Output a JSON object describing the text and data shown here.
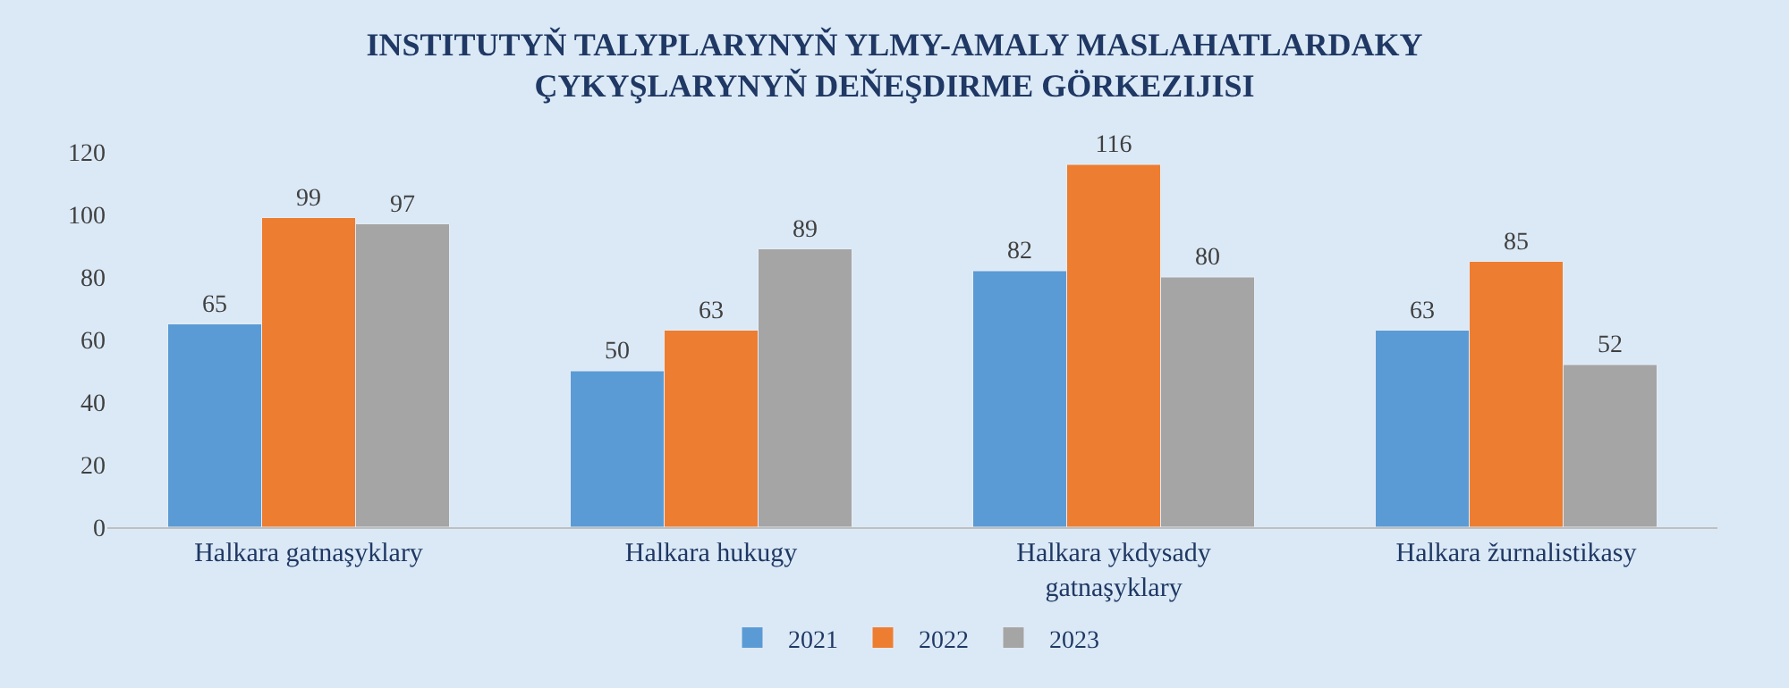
{
  "chart_data": {
    "type": "bar",
    "title": "INSTITUTYŇ TALYPLARYNYŇ YLMY-AMALY MASLAHATLARDAKY\nÇYKYŞLARYNYŇ DEŇEŞDIRME GÖRKEZIJISI",
    "categories": [
      "Halkara gatnaşyklary",
      "Halkara hukugy",
      "Halkara ykdysady\ngatnaşyklary",
      "Halkara žurnalistikasy"
    ],
    "series": [
      {
        "name": "2021",
        "color": "#5b9bd5",
        "values": [
          65,
          50,
          82,
          63
        ]
      },
      {
        "name": "2022",
        "color": "#ed7d31",
        "values": [
          99,
          63,
          116,
          85
        ]
      },
      {
        "name": "2023",
        "color": "#a5a5a5",
        "values": [
          97,
          89,
          80,
          52
        ]
      }
    ],
    "ylim": [
      0,
      120
    ],
    "yticks": [
      0,
      20,
      40,
      60,
      80,
      100,
      120
    ],
    "data_labels": true,
    "legend": "bottom",
    "grid": false
  }
}
